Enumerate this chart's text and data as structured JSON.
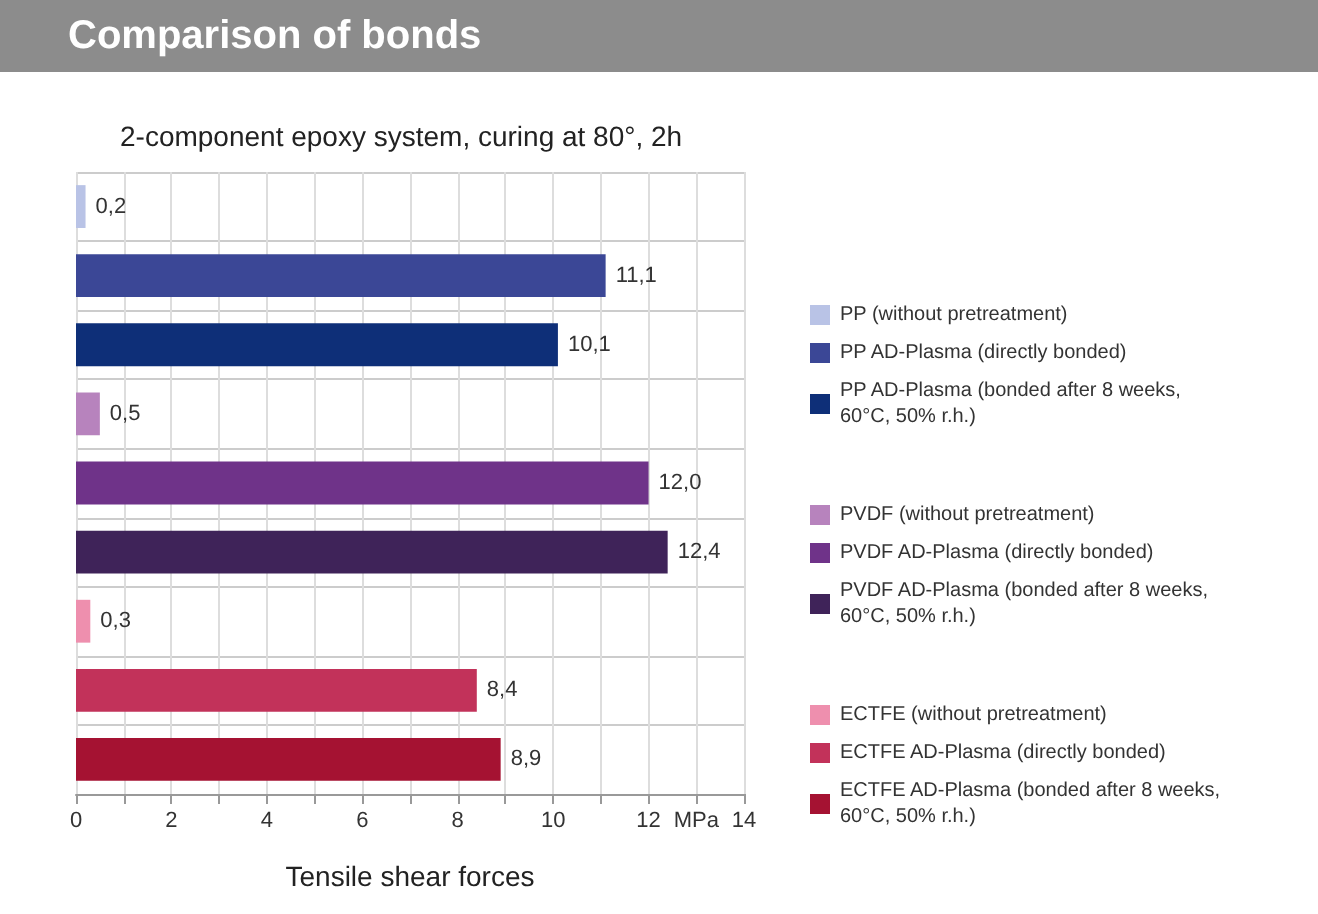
{
  "chart_data": {
    "type": "bar",
    "orientation": "horizontal",
    "title": "Comparison of bonds",
    "subtitle": "2-component epoxy system, curing at 80°, 2h",
    "xlabel": "Tensile shear forces",
    "categories": [
      null,
      null,
      null,
      null,
      null,
      null,
      null,
      null,
      null
    ],
    "series": [
      {
        "name": "PP (without pretreatment)",
        "color": "#b9c3e6",
        "values": [
          0.2,
          null,
          null,
          null,
          null,
          null,
          null,
          null,
          null
        ],
        "value_labels": [
          "0,2",
          null,
          null,
          null,
          null,
          null,
          null,
          null,
          null
        ]
      },
      {
        "name": "PP AD-Plasma (directly bonded)",
        "color": "#3b4796",
        "values": [
          null,
          11.1,
          null,
          null,
          null,
          null,
          null,
          null,
          null
        ],
        "value_labels": [
          null,
          "11,1",
          null,
          null,
          null,
          null,
          null,
          null,
          null
        ]
      },
      {
        "name": "PP AD-Plasma (bonded after 8 weeks, 60°C, 50% r.h.)",
        "color": "#0e2f78",
        "values": [
          null,
          null,
          10.1,
          null,
          null,
          null,
          null,
          null,
          null
        ],
        "value_labels": [
          null,
          null,
          "10,1",
          null,
          null,
          null,
          null,
          null,
          null
        ]
      },
      {
        "name": "PVDF (without pretreatment)",
        "color": "#b783bd",
        "values": [
          null,
          null,
          null,
          0.5,
          null,
          null,
          null,
          null,
          null
        ],
        "value_labels": [
          null,
          null,
          null,
          "0,5",
          null,
          null,
          null,
          null,
          null
        ]
      },
      {
        "name": "PVDF AD-Plasma (directly bonded)",
        "color": "#6f3389",
        "values": [
          null,
          null,
          null,
          null,
          12.0,
          null,
          null,
          null,
          null
        ],
        "value_labels": [
          null,
          null,
          null,
          null,
          "12,0",
          null,
          null,
          null,
          null
        ]
      },
      {
        "name": "PVDF AD-Plasma (bonded after 8 weeks, 60°C, 50% r.h.)",
        "color": "#3f2359",
        "values": [
          null,
          null,
          null,
          null,
          null,
          12.4,
          null,
          null,
          null
        ],
        "value_labels": [
          null,
          null,
          null,
          null,
          null,
          "12,4",
          null,
          null,
          null
        ]
      },
      {
        "name": "ECTFE (without pretreatment)",
        "color": "#ee8fae",
        "values": [
          null,
          null,
          null,
          null,
          null,
          null,
          0.3,
          null,
          null
        ],
        "value_labels": [
          null,
          null,
          null,
          null,
          null,
          null,
          "0,3",
          null,
          null
        ]
      },
      {
        "name": "ECTFE AD-Plasma (directly bonded)",
        "color": "#c2325a",
        "values": [
          null,
          null,
          null,
          null,
          null,
          null,
          null,
          8.4,
          null
        ],
        "value_labels": [
          null,
          null,
          null,
          null,
          null,
          null,
          null,
          "8,4",
          null
        ]
      },
      {
        "name": "ECTFE AD-Plasma (bonded after 8 weeks, 60°C, 50% r.h.)",
        "color": "#a51232",
        "values": [
          null,
          null,
          null,
          null,
          null,
          null,
          null,
          null,
          8.9
        ],
        "value_labels": [
          null,
          null,
          null,
          null,
          null,
          null,
          null,
          null,
          "8,9"
        ]
      }
    ],
    "xlim": [
      0,
      14
    ],
    "xticks": [
      0,
      {
        "value": 1,
        "label": null
      },
      2,
      {
        "value": 3,
        "label": null
      },
      4,
      {
        "value": 5,
        "label": null
      },
      6,
      {
        "value": 7,
        "label": null
      },
      8,
      {
        "value": 9,
        "label": null
      },
      10,
      {
        "value": 11,
        "label": null
      },
      12,
      {
        "value": 13,
        "label": "MPa"
      },
      14
    ],
    "grid": true,
    "legend": "right"
  }
}
